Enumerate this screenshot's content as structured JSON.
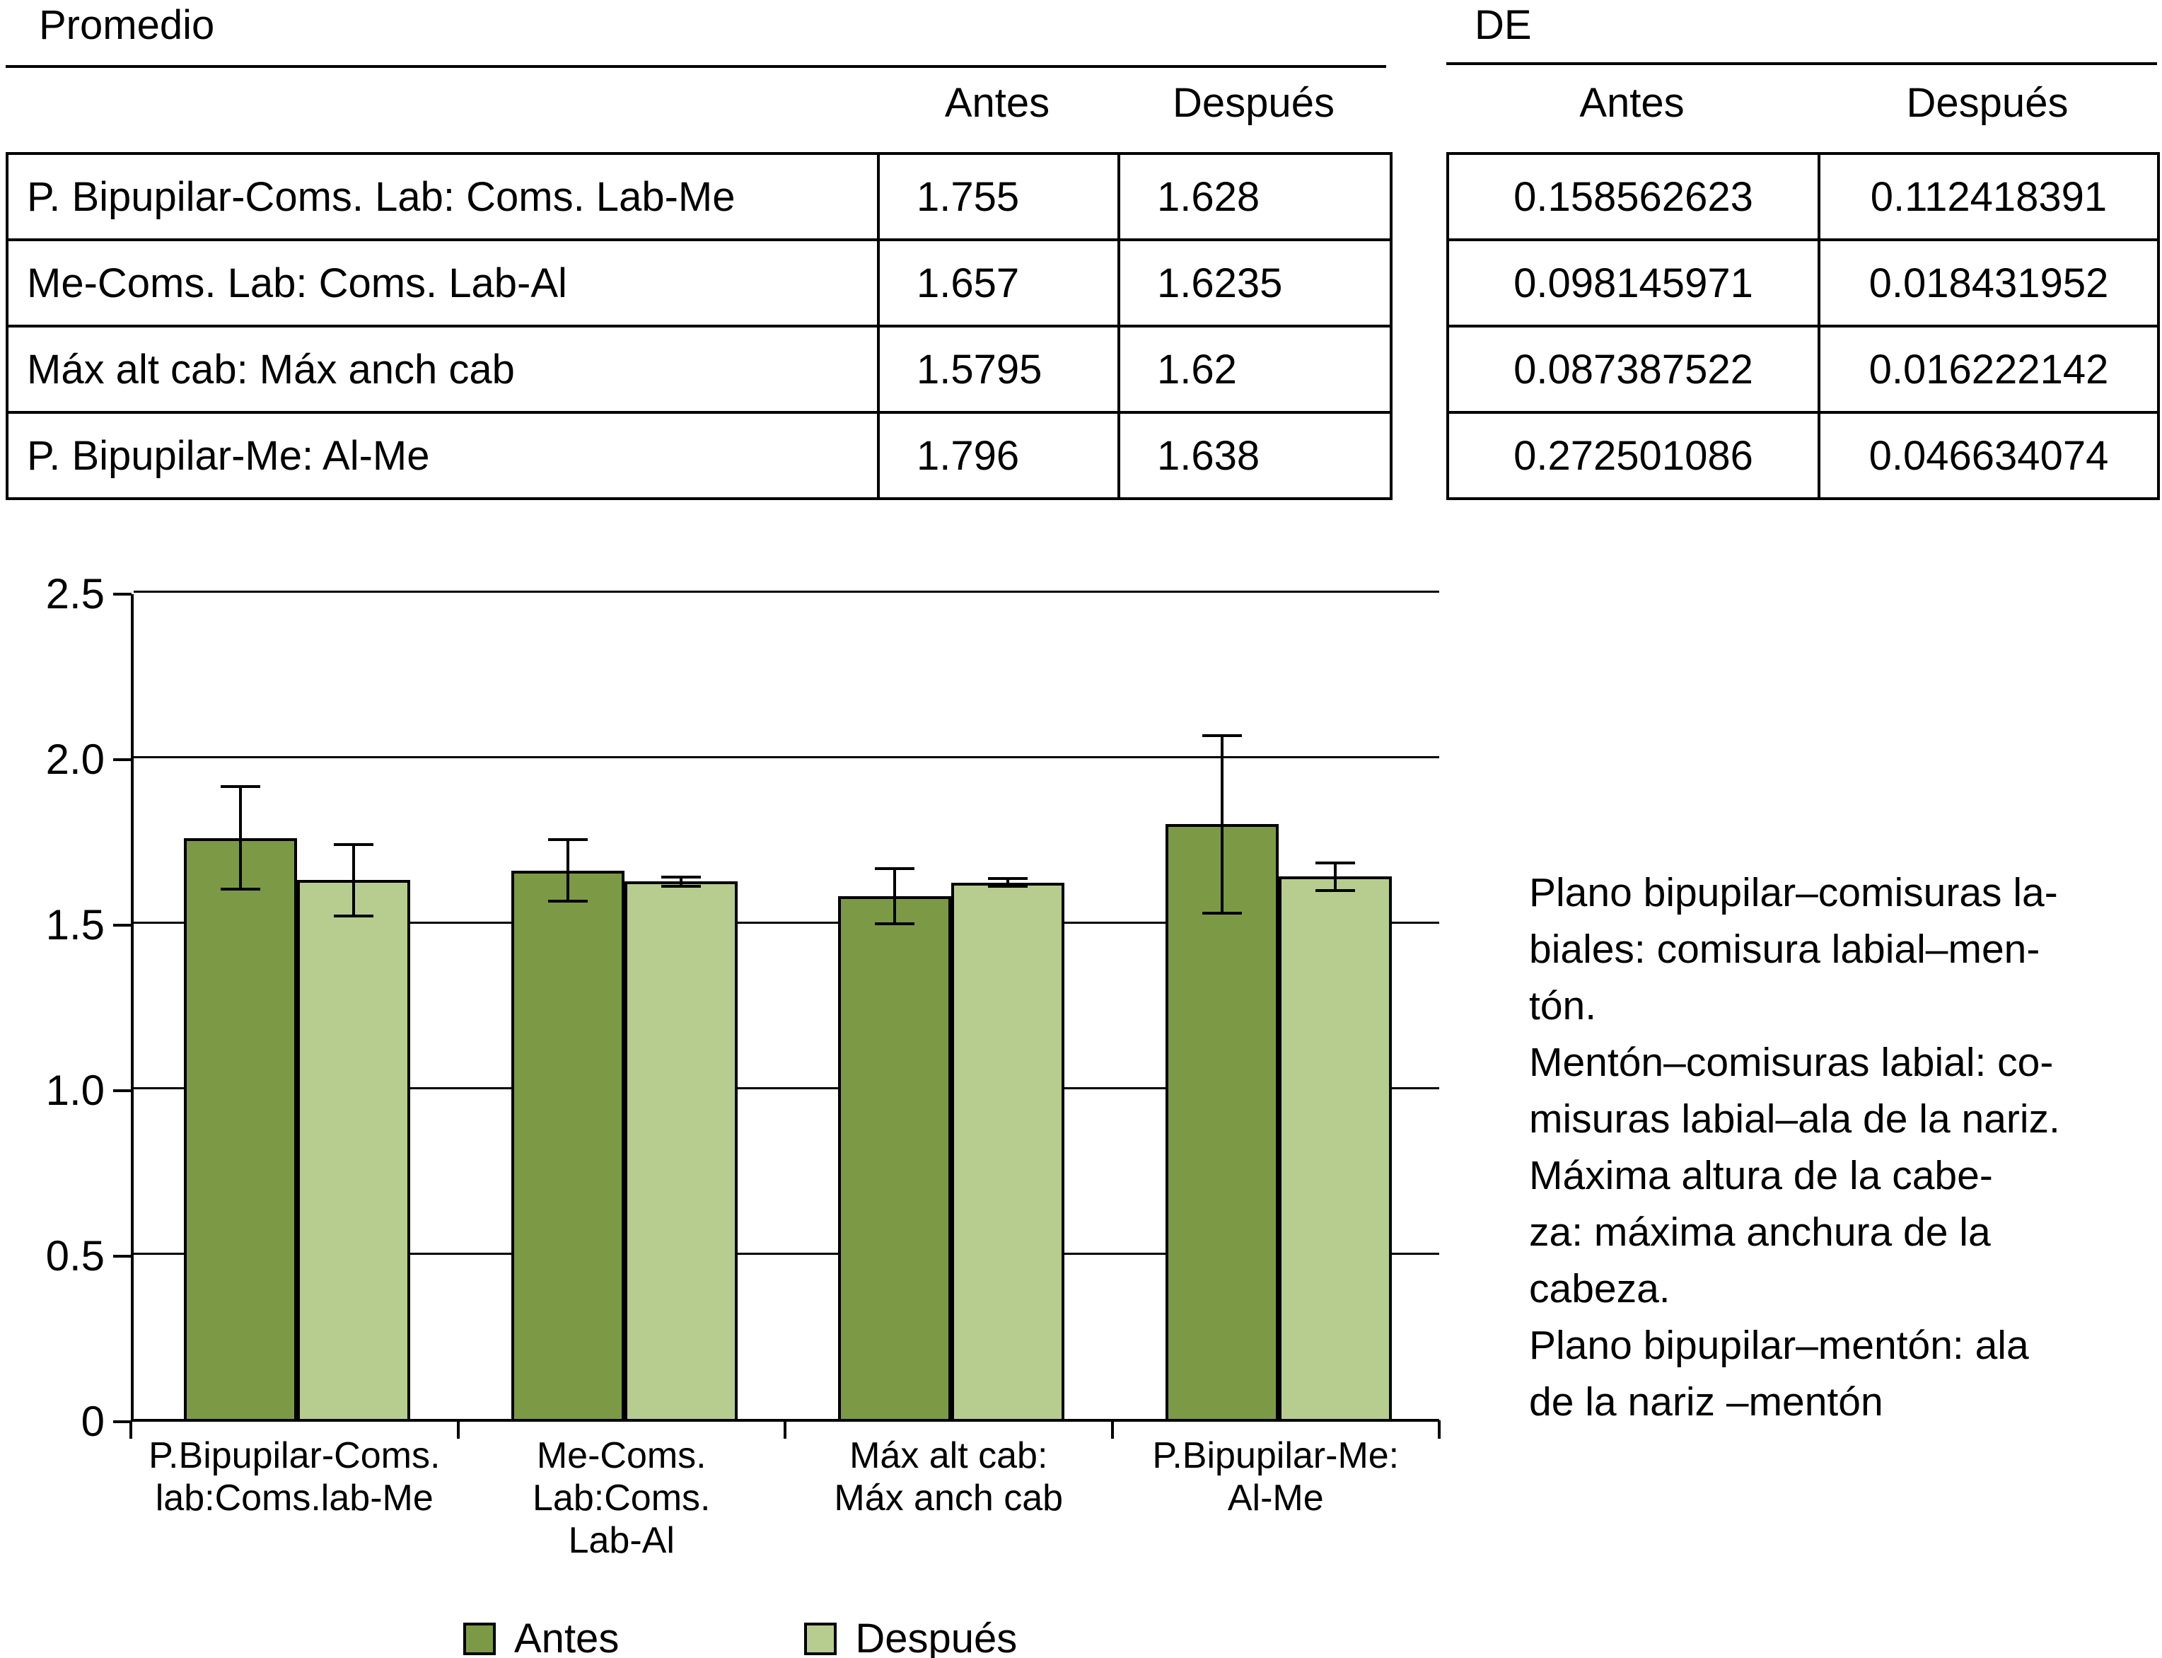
{
  "tables": {
    "promedio": {
      "title": "Promedio",
      "col_headers": [
        "Antes",
        "Después"
      ],
      "rows": [
        {
          "label": "P. Bipupilar-Coms. Lab: Coms. Lab-Me",
          "antes": "1.755",
          "despues": "1.628"
        },
        {
          "label": "Me-Coms. Lab: Coms. Lab-Al",
          "antes": "1.657",
          "despues": "1.6235"
        },
        {
          "label": "Máx alt cab: Máx anch cab",
          "antes": "1.5795",
          "despues": "1.62"
        },
        {
          "label": "P. Bipupilar-Me: Al-Me",
          "antes": "1.796",
          "despues": "1.638"
        }
      ]
    },
    "de": {
      "title": "DE",
      "col_headers": [
        "Antes",
        "Después"
      ],
      "rows": [
        {
          "antes": "0.158562623",
          "despues": "0.112418391"
        },
        {
          "antes": "0.098145971",
          "despues": "0.018431952"
        },
        {
          "antes": "0.087387522",
          "despues": "0.016222142"
        },
        {
          "antes": "0.272501086",
          "despues": "0.046634074"
        }
      ]
    }
  },
  "chart_data": {
    "type": "bar",
    "title": "",
    "xlabel": "",
    "ylabel": "",
    "categories": [
      "P.Bipupilar-Coms.\nlab:Coms.lab-Me",
      "Me-Coms.\nLab:Coms.\nLab-Al",
      "Máx alt cab:\nMáx anch cab",
      "P.Bipupilar-Me:\nAl-Me"
    ],
    "series": [
      {
        "name": "Antes",
        "color": "#7c9a45",
        "values": [
          1.755,
          1.657,
          1.5795,
          1.796
        ],
        "errors": [
          0.158562623,
          0.098145971,
          0.087387522,
          0.272501086
        ]
      },
      {
        "name": "Después",
        "color": "#b7cd8f",
        "values": [
          1.628,
          1.6235,
          1.62,
          1.638
        ],
        "errors": [
          0.112418391,
          0.018431952,
          0.016222142,
          0.046634074
        ]
      }
    ],
    "ylim": [
      0,
      2.5
    ],
    "yticks": [
      "0",
      "0.5",
      "1.0",
      "1.5",
      "2.0",
      "2.5"
    ],
    "grid": true,
    "legend_position": "bottom"
  },
  "annotation": {
    "text": "Plano bipupilar–comisuras la-\nbiales: comisura labial–men-\ntón.\nMentón–comisuras labial: co-\nmisuras labial–ala de la nariz.\nMáxima altura de la cabe-\nza: máxima anchura de la\ncabeza.\nPlano bipupilar–mentón: ala\nde la nariz –mentón"
  }
}
